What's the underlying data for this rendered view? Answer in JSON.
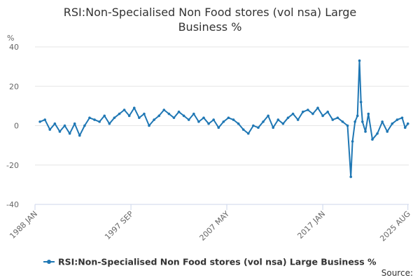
{
  "chart_data": {
    "type": "line",
    "title_lines": [
      "RSI:Non-Specialised Non Food stores (vol nsa) Large",
      "Business %"
    ],
    "unit_label": "%",
    "ylim": [
      -40,
      40
    ],
    "yticks": [
      40,
      20,
      0,
      -20,
      -40
    ],
    "xlim": [
      1988.0,
      2025.67
    ],
    "xticks": [
      {
        "label": "1988 JAN",
        "x": 1988.0
      },
      {
        "label": "1997 SEP",
        "x": 1997.67
      },
      {
        "label": "2007 MAY",
        "x": 2007.33
      },
      {
        "label": "2017 JAN",
        "x": 2017.0
      },
      {
        "label": "2025 AUG",
        "x": 2025.58
      }
    ],
    "grid": true,
    "legend_position": "bottom",
    "series": [
      {
        "name": "RSI:Non-Specialised Non Food stores (vol nsa) Large Business %",
        "color": "#1f77b4",
        "points": [
          [
            1988.5,
            2
          ],
          [
            1989.0,
            3
          ],
          [
            1989.5,
            -2
          ],
          [
            1990.0,
            1
          ],
          [
            1990.5,
            -3
          ],
          [
            1991.0,
            0
          ],
          [
            1991.5,
            -4
          ],
          [
            1992.0,
            1
          ],
          [
            1992.5,
            -5
          ],
          [
            1993.0,
            0
          ],
          [
            1993.5,
            4
          ],
          [
            1994.0,
            3
          ],
          [
            1994.5,
            2
          ],
          [
            1995.0,
            5
          ],
          [
            1995.5,
            1
          ],
          [
            1996.0,
            4
          ],
          [
            1996.5,
            6
          ],
          [
            1997.0,
            8
          ],
          [
            1997.5,
            5
          ],
          [
            1998.0,
            9
          ],
          [
            1998.5,
            4
          ],
          [
            1999.0,
            6
          ],
          [
            1999.5,
            0
          ],
          [
            2000.0,
            3
          ],
          [
            2000.5,
            5
          ],
          [
            2001.0,
            8
          ],
          [
            2001.5,
            6
          ],
          [
            2002.0,
            4
          ],
          [
            2002.5,
            7
          ],
          [
            2003.0,
            5
          ],
          [
            2003.5,
            3
          ],
          [
            2004.0,
            6
          ],
          [
            2004.5,
            2
          ],
          [
            2005.0,
            4
          ],
          [
            2005.5,
            1
          ],
          [
            2006.0,
            3
          ],
          [
            2006.5,
            -1
          ],
          [
            2007.0,
            2
          ],
          [
            2007.5,
            4
          ],
          [
            2008.0,
            3
          ],
          [
            2008.5,
            1
          ],
          [
            2009.0,
            -2
          ],
          [
            2009.5,
            -4
          ],
          [
            2010.0,
            0
          ],
          [
            2010.5,
            -1
          ],
          [
            2011.0,
            2
          ],
          [
            2011.5,
            5
          ],
          [
            2012.0,
            -1
          ],
          [
            2012.5,
            3
          ],
          [
            2013.0,
            1
          ],
          [
            2013.5,
            4
          ],
          [
            2014.0,
            6
          ],
          [
            2014.5,
            3
          ],
          [
            2015.0,
            7
          ],
          [
            2015.5,
            8
          ],
          [
            2016.0,
            6
          ],
          [
            2016.5,
            9
          ],
          [
            2017.0,
            5
          ],
          [
            2017.5,
            7
          ],
          [
            2018.0,
            3
          ],
          [
            2018.5,
            4
          ],
          [
            2019.0,
            2
          ],
          [
            2019.5,
            0
          ],
          [
            2019.83,
            -26
          ],
          [
            2020.0,
            -8
          ],
          [
            2020.25,
            2
          ],
          [
            2020.5,
            5
          ],
          [
            2020.7,
            33
          ],
          [
            2020.85,
            12
          ],
          [
            2021.0,
            2
          ],
          [
            2021.3,
            -3
          ],
          [
            2021.6,
            6
          ],
          [
            2022.0,
            -7
          ],
          [
            2022.5,
            -4
          ],
          [
            2023.0,
            2
          ],
          [
            2023.5,
            -3
          ],
          [
            2024.0,
            1
          ],
          [
            2024.5,
            3
          ],
          [
            2025.0,
            4
          ],
          [
            2025.3,
            -1
          ],
          [
            2025.58,
            1
          ]
        ]
      }
    ],
    "source_label": "Source:"
  }
}
